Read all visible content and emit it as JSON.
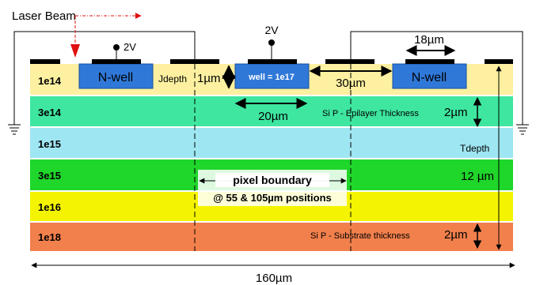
{
  "laser": {
    "label": "Laser Beam"
  },
  "voltages": {
    "left": "2V",
    "center": "2V"
  },
  "wells": {
    "left": "N-well",
    "center": "well = 1e17",
    "right": "N-well"
  },
  "layers": [
    {
      "doping": "1e14",
      "color": "#fdf0a0"
    },
    {
      "doping": "3e14",
      "color": "#3ee6a0"
    },
    {
      "doping": "1e15",
      "color": "#9ee6f2"
    },
    {
      "doping": "3e15",
      "color": "#1fd62a"
    },
    {
      "doping": "1e16",
      "color": "#f4f400"
    },
    {
      "doping": "1e18",
      "color": "#f2804c"
    }
  ],
  "annotations": {
    "jdepth": "Jdepth",
    "one_um": "1µm",
    "thirty_um": "30µm",
    "eighteen_um": "18µm",
    "twenty_um": "20µm",
    "epi_label": "Si P - Epilayer Thickness",
    "epi_value": "2µm",
    "tdepth": "Tdepth",
    "twelve_um": "12 µm",
    "substrate_label": "Si P - Substrate thickness",
    "substrate_value": "2µm",
    "total_width": "160µm"
  },
  "pixel_boundary": {
    "line1": "pixel boundary",
    "line2": "@ 55 & 105µm positions"
  },
  "colors": {
    "well": "#2f78d8",
    "contact": "#000000",
    "laser_arrow": "#e01010",
    "label_box": "#ffffff"
  }
}
